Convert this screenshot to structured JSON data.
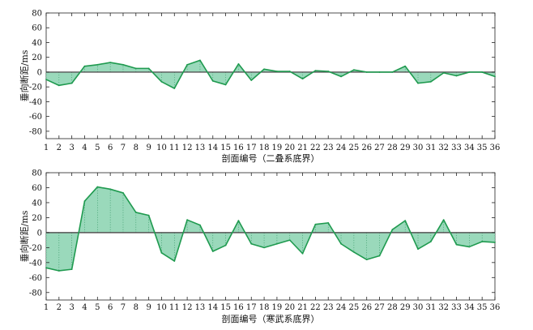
{
  "chart_data": [
    {
      "type": "area",
      "title": "",
      "xlabel": "剖面编号（二叠系底界）",
      "ylabel": "垂向断距/ms",
      "ylim": [
        -90,
        80
      ],
      "yticks": [
        80,
        60,
        40,
        20,
        0,
        -20,
        -40,
        -60,
        -80
      ],
      "xlim": [
        1,
        36
      ],
      "categories": [
        "1",
        "2",
        "3",
        "4",
        "5",
        "6",
        "7",
        "8",
        "9",
        "10",
        "11",
        "12",
        "13",
        "14",
        "15",
        "16",
        "17",
        "18",
        "19",
        "20",
        "21",
        "22",
        "23",
        "24",
        "25",
        "26",
        "27",
        "28",
        "29",
        "30",
        "31",
        "32",
        "33",
        "34",
        "35",
        "36"
      ],
      "values": [
        -10,
        -18,
        -15,
        8,
        10,
        13,
        10,
        5,
        5,
        -13,
        -22,
        10,
        16,
        -12,
        -17,
        11,
        -11,
        4,
        1,
        1,
        -9,
        2,
        1,
        -6,
        3,
        0,
        0,
        0,
        8,
        -15,
        -13,
        -1,
        -5,
        0,
        0,
        -6
      ],
      "fill_color": "#8fd5b4",
      "line_color": "#1f9a4f",
      "zero_line_color": "#555555",
      "grid": false
    },
    {
      "type": "area",
      "title": "",
      "xlabel": "剖面编号（寒武系底界）",
      "ylabel": "垂向断距/ms",
      "ylim": [
        -90,
        80
      ],
      "yticks": [
        80,
        60,
        40,
        20,
        0,
        -20,
        -40,
        -60,
        -80
      ],
      "xlim": [
        1,
        36
      ],
      "categories": [
        "1",
        "2",
        "3",
        "4",
        "5",
        "6",
        "7",
        "8",
        "9",
        "10",
        "11",
        "12",
        "13",
        "14",
        "15",
        "16",
        "17",
        "18",
        "19",
        "20",
        "21",
        "22",
        "23",
        "24",
        "25",
        "26",
        "27",
        "28",
        "29",
        "30",
        "31",
        "32",
        "33",
        "34",
        "35",
        "36"
      ],
      "values": [
        -47,
        -51,
        -49,
        42,
        61,
        58,
        53,
        27,
        23,
        -27,
        -38,
        17,
        10,
        -25,
        -17,
        16,
        -15,
        -20,
        -15,
        -10,
        -28,
        11,
        13,
        -15,
        -26,
        -36,
        -31,
        4,
        16,
        -22,
        -12,
        17,
        -16,
        -19,
        -12,
        -13
      ],
      "fill_color": "#8fd5b4",
      "line_color": "#1f9a4f",
      "zero_line_color": "#555555",
      "grid": false
    }
  ]
}
